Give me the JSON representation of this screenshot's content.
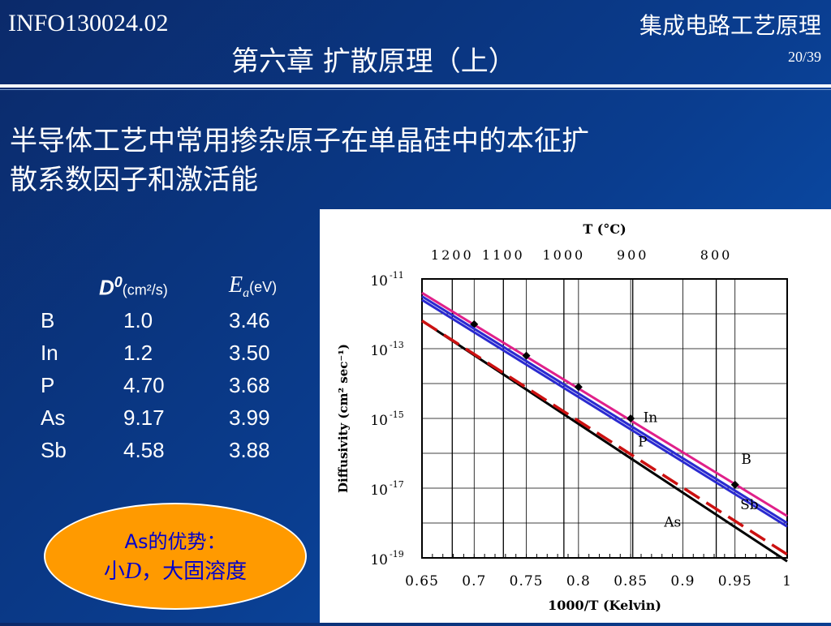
{
  "header": {
    "course_code": "INFO130024.02",
    "course_title": "集成电路工艺原理",
    "chapter_title": "第六章  扩散原理（上）",
    "page": "20/39"
  },
  "heading_line1": "半导体工艺中常用掺杂原子在单晶硅中的本征扩",
  "heading_line2": "散系数因子和激活能",
  "table": {
    "col_d_symbol": "D",
    "col_d_sup": "0",
    "col_d_unit": "(cm²/s)",
    "col_e_symbol": "E",
    "col_e_sub": "a",
    "col_e_unit": "(eV)",
    "rows": [
      {
        "element": "B",
        "d0": "1.0",
        "ea": "3.46"
      },
      {
        "element": "In",
        "d0": "1.2",
        "ea": "3.50"
      },
      {
        "element": "P",
        "d0": "4.70",
        "ea": "3.68"
      },
      {
        "element": "As",
        "d0": "9.17",
        "ea": "3.99"
      },
      {
        "element": "Sb",
        "d0": "4.58",
        "ea": "3.88"
      }
    ]
  },
  "callout": {
    "line1": "As的优势：",
    "line2_prefix": "小",
    "line2_d": "D",
    "line2_suffix": "，大固溶度",
    "fill_color": "#ff9a00",
    "text_color": "#0000cc"
  },
  "chart_data": {
    "type": "line",
    "title": "",
    "xlabel": "1000/T    (Kelvin)",
    "ylabel": "Diffusivity  (cm² sec⁻¹)",
    "top_axis_label": "T  (°C)",
    "xlim": [
      0.65,
      1.0
    ],
    "y_scale": "log",
    "ylim_exponent": [
      -19,
      -11
    ],
    "x_ticks": [
      "0.65",
      "0.7",
      "0.75",
      "0.8",
      "0.85",
      "0.9",
      "0.95",
      "1"
    ],
    "y_ticks": [
      {
        "base": "10",
        "exp": "-11",
        "value": -11
      },
      {
        "base": "10",
        "exp": "-13",
        "value": -13
      },
      {
        "base": "10",
        "exp": "-15",
        "value": -15
      },
      {
        "base": "10",
        "exp": "-17",
        "value": -17
      },
      {
        "base": "10",
        "exp": "-19",
        "value": -19
      }
    ],
    "top_ticks": [
      {
        "label": "1200",
        "x": 0.679
      },
      {
        "label": "1100",
        "x": 0.728
      },
      {
        "label": "1000",
        "x": 0.786
      },
      {
        "label": "900",
        "x": 0.852
      },
      {
        "label": "800",
        "x": 0.932
      }
    ],
    "grid": true,
    "series": [
      {
        "name": "B",
        "color": "#e0208a",
        "style": "solid",
        "x": [
          0.65,
          1.0
        ],
        "log10_y": [
          -11.4,
          -17.8
        ],
        "markers": [
          {
            "x": 0.7,
            "log10_y": -12.3
          },
          {
            "x": 0.75,
            "log10_y": -13.2
          },
          {
            "x": 0.8,
            "log10_y": -14.1
          },
          {
            "x": 0.85,
            "log10_y": -15.0
          },
          {
            "x": 0.95,
            "log10_y": -16.9
          }
        ]
      },
      {
        "name": "In",
        "color": "#2a2ad0",
        "style": "solid",
        "x": [
          0.65,
          1.0
        ],
        "log10_y": [
          -11.5,
          -18.0
        ]
      },
      {
        "name": "P",
        "color": "#2a2ad0",
        "style": "solid",
        "x": [
          0.65,
          1.0
        ],
        "log10_y": [
          -11.6,
          -18.1
        ]
      },
      {
        "name": "As",
        "color": "#000000",
        "style": "solid",
        "x": [
          0.65,
          1.0
        ],
        "log10_y": [
          -12.2,
          -19.1
        ]
      },
      {
        "name": "Sb",
        "color": "#cc1111",
        "style": "dashed",
        "x": [
          0.65,
          1.0
        ],
        "log10_y": [
          -12.2,
          -18.9
        ]
      }
    ],
    "annotations": [
      {
        "text": "In",
        "x": 0.862,
        "log10_y": -15.1
      },
      {
        "text": "P",
        "x": 0.857,
        "log10_y": -15.8
      },
      {
        "text": "B",
        "x": 0.956,
        "log10_y": -16.3
      },
      {
        "text": "Sb",
        "x": 0.955,
        "log10_y": -17.6
      },
      {
        "text": "As",
        "x": 0.882,
        "log10_y": -18.1
      }
    ]
  }
}
